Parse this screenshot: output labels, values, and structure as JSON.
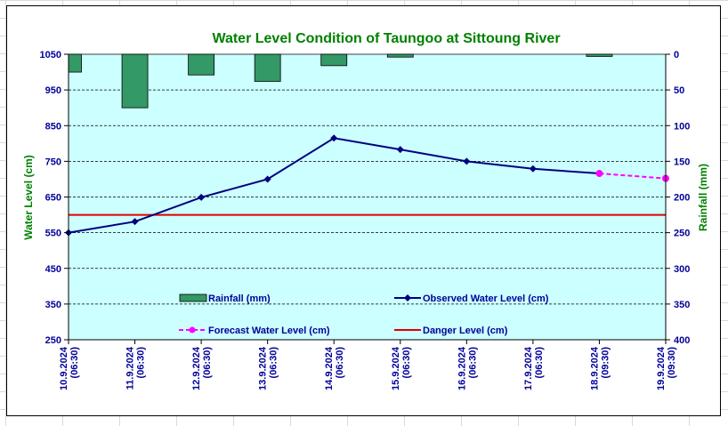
{
  "colors": {
    "title": "#008000",
    "axis_text": "#000099",
    "plot_bg": "#ccffff",
    "rain_fill": "#339966",
    "observed": "#000080",
    "forecast": "#ff00ff",
    "danger": "#dd0000"
  },
  "chart_data": {
    "type": "bar+line",
    "title": "Water Level Condition of Taungoo at  Sittoung River",
    "ylabel_left": "Water Level (cm)",
    "ylabel_right": "Rainfall (mm)",
    "ylim_left": [
      250,
      1050
    ],
    "yticks_left": [
      250,
      350,
      450,
      550,
      650,
      750,
      850,
      950,
      1050
    ],
    "ylim_right": [
      0,
      400
    ],
    "right_axis_inverted": true,
    "yticks_right": [
      0,
      50,
      100,
      150,
      200,
      250,
      300,
      350,
      400
    ],
    "grid": true,
    "categories": [
      [
        "10.9.2024",
        "(06:30)"
      ],
      [
        "11.9.2024",
        "(06:30)"
      ],
      [
        "12.9.2024",
        "(06:30)"
      ],
      [
        "13.9.2024",
        "(06:30)"
      ],
      [
        "14.9.2024",
        "(06:30)"
      ],
      [
        "15.9.2024",
        "(06:30)"
      ],
      [
        "16.9.2024",
        "(06:30)"
      ],
      [
        "17.9.2024",
        "(06:30)"
      ],
      [
        "18.9.2024",
        "(09:30)"
      ],
      [
        "19.9.2024",
        "(09:30)"
      ]
    ],
    "rainfall": {
      "name": "Rainfall (mm)",
      "values": [
        25,
        75,
        29,
        38,
        16,
        4,
        null,
        null,
        3,
        null
      ]
    },
    "observed": {
      "name": "Observed Water Level (cm)",
      "values": [
        550,
        581,
        649,
        700,
        815,
        783,
        750,
        729,
        716,
        null
      ]
    },
    "forecast": {
      "name": "Forecast Water Level (cm)",
      "values": [
        null,
        null,
        null,
        null,
        null,
        null,
        null,
        null,
        716,
        702
      ]
    },
    "danger": {
      "name": "Danger Level (cm)",
      "value": 600
    }
  }
}
